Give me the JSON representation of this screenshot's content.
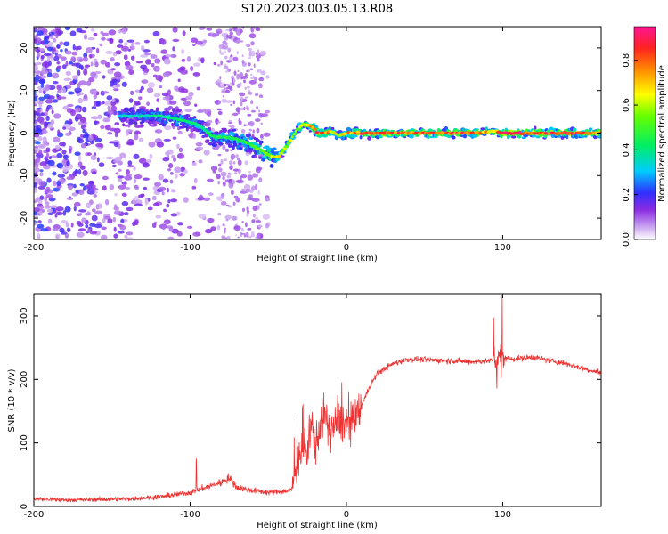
{
  "title": "S120.2023.003.05.13.R08",
  "colors": {
    "snr_line": "#ee3333",
    "axis": "#000000",
    "background": "#ffffff"
  },
  "chart_data": [
    {
      "type": "heatmap",
      "xlabel": "Height of straight line (km)",
      "ylabel": "Frequency (Hz)",
      "xlim": [
        -200,
        163
      ],
      "ylim": [
        -25,
        25
      ],
      "xticks": [
        -200,
        -100,
        0,
        100
      ],
      "xtick_labels": [
        "-200",
        "-100",
        "0",
        "100"
      ],
      "yticks": [
        -20,
        -10,
        0,
        10,
        20
      ],
      "ytick_labels": [
        "-20",
        "-10",
        "0",
        "10",
        "20"
      ],
      "colorbar": {
        "label": "Normalized spectral amplitude",
        "range": [
          0,
          0.95
        ],
        "ticks": [
          0.0,
          0.2,
          0.4,
          0.6,
          0.8
        ],
        "tick_labels": [
          "0.0",
          "0.2",
          "0.4",
          "0.6",
          "0.8"
        ],
        "colormap": "rainbow (white-purple-blue-cyan-green-yellow-red-magenta)"
      },
      "ridge": {
        "height_km": [
          -140,
          -120,
          -105,
          -95,
          -85,
          -75,
          -65,
          -55,
          -48,
          -43,
          -38,
          -33,
          -28,
          -22,
          -18,
          -14,
          -10,
          -5,
          0,
          20,
          40,
          60,
          80,
          95,
          100,
          120,
          140,
          163
        ],
        "frequency_hz": [
          4,
          4,
          3,
          2,
          -1,
          -1,
          -2,
          -4,
          -5.5,
          -5.5,
          -3,
          0,
          2,
          1.5,
          0,
          0,
          0.5,
          -0.5,
          0,
          0,
          0,
          0,
          0,
          0.5,
          0,
          0,
          0,
          0
        ],
        "amplitude": [
          0.35,
          0.4,
          0.45,
          0.4,
          0.45,
          0.45,
          0.5,
          0.55,
          0.6,
          0.65,
          0.6,
          0.55,
          0.6,
          0.75,
          0.85,
          0.8,
          0.7,
          0.6,
          0.75,
          0.85,
          0.8,
          0.85,
          0.8,
          0.7,
          0.9,
          0.85,
          0.85,
          0.8
        ]
      },
      "grid": false
    },
    {
      "type": "line",
      "xlabel": "Height of straight line (km)",
      "ylabel": "SNR (10 * v/v)",
      "xlim": [
        -200,
        163
      ],
      "ylim": [
        0,
        335
      ],
      "xticks": [
        -200,
        -100,
        0,
        100
      ],
      "xtick_labels": [
        "-200",
        "-100",
        "0",
        "100"
      ],
      "yticks": [
        0,
        100,
        200,
        300
      ],
      "ytick_labels": [
        "0",
        "100",
        "200",
        "300"
      ],
      "series": [
        {
          "x": [
            -200,
            -180,
            -160,
            -140,
            -120,
            -100,
            -90,
            -80,
            -75,
            -70,
            -60,
            -50,
            -35,
            -32,
            -28,
            -25,
            -22,
            -20,
            -15,
            -10,
            -5,
            0,
            5,
            10,
            15,
            20,
            30,
            40,
            60,
            80,
            95,
            100,
            105,
            120,
            140,
            163
          ],
          "y": [
            12,
            10,
            11,
            12,
            15,
            22,
            30,
            38,
            45,
            30,
            25,
            22,
            25,
            65,
            95,
            80,
            130,
            95,
            145,
            120,
            135,
            130,
            130,
            160,
            190,
            210,
            225,
            232,
            230,
            228,
            230,
            235,
            232,
            235,
            225,
            210
          ]
        }
      ],
      "grid": false
    }
  ]
}
